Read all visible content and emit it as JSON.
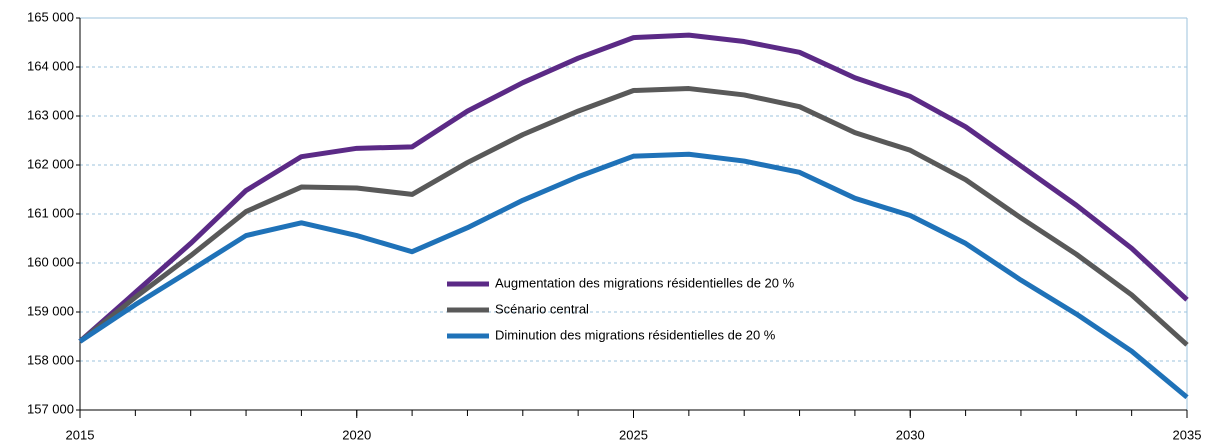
{
  "chart_data": {
    "type": "line",
    "x": [
      2015,
      2016,
      2017,
      2018,
      2019,
      2020,
      2021,
      2022,
      2023,
      2024,
      2025,
      2026,
      2027,
      2028,
      2029,
      2030,
      2031,
      2032,
      2033,
      2034,
      2035
    ],
    "series": [
      {
        "name": "Augmentation des migrations résidentielles de 20 %",
        "color": "#5b2a86",
        "values": [
          158400,
          159400,
          160400,
          161480,
          162170,
          162340,
          162370,
          163100,
          163680,
          164180,
          164600,
          164650,
          164520,
          164300,
          163780,
          163400,
          162780,
          161980,
          161180,
          160300,
          159250
        ]
      },
      {
        "name": "Scénario central",
        "color": "#595959",
        "values": [
          158400,
          159300,
          160150,
          161050,
          161550,
          161530,
          161400,
          162050,
          162620,
          163100,
          163520,
          163560,
          163430,
          163190,
          162660,
          162300,
          161700,
          160920,
          160180,
          159350,
          158330
        ]
      },
      {
        "name": "Diminution des migrations résidentielles de 20 %",
        "color": "#1f72b8",
        "values": [
          158400,
          159150,
          159850,
          160560,
          160820,
          160560,
          160230,
          160720,
          161280,
          161760,
          162180,
          162220,
          162080,
          161850,
          161320,
          160970,
          160400,
          159650,
          158960,
          158200,
          157260
        ]
      }
    ],
    "xlim": [
      2015,
      2035
    ],
    "xticks": [
      2015,
      2020,
      2025,
      2030,
      2035
    ],
    "ylim": [
      157000,
      165000
    ],
    "yticks": [
      {
        "value": 157000,
        "label": "157 000"
      },
      {
        "value": 158000,
        "label": "158 000"
      },
      {
        "value": 159000,
        "label": "159 000"
      },
      {
        "value": 160000,
        "label": "160 000"
      },
      {
        "value": 161000,
        "label": "161 000"
      },
      {
        "value": 162000,
        "label": "162 000"
      },
      {
        "value": 163000,
        "label": "163 000"
      },
      {
        "value": 164000,
        "label": "164 000"
      },
      {
        "value": 165000,
        "label": "165 000"
      }
    ],
    "grid": true
  }
}
